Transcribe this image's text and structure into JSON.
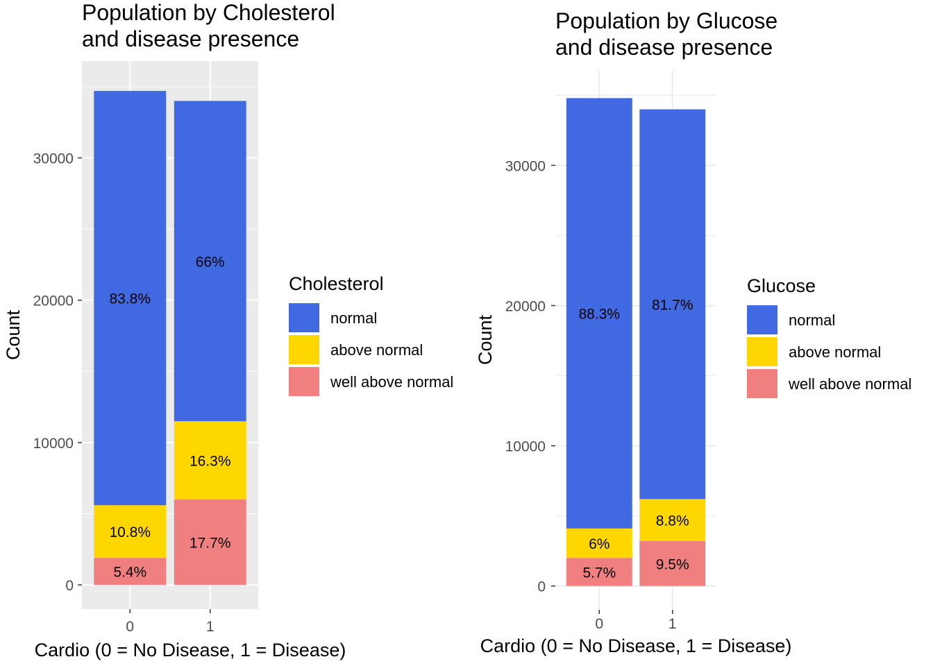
{
  "chart_data": [
    {
      "type": "bar",
      "stacked": true,
      "title_lines": [
        "Population by Cholesterol",
        "and disease presence"
      ],
      "xlabel": "Cardio (0 = No Disease, 1 = Disease)",
      "ylabel": "Count",
      "categories": [
        "0",
        "1"
      ],
      "y_ticks": [
        0,
        10000,
        20000,
        30000
      ],
      "y_tick_labels": [
        "0",
        "10000",
        "20000",
        "30000"
      ],
      "ylim": [
        -1700,
        36800
      ],
      "grid": true,
      "panel_background": "#ebebeb",
      "grid_color": "#ffffff",
      "legend": {
        "title": "Cholesterol",
        "position": "right"
      },
      "series": [
        {
          "name": "well above normal",
          "color": "#f08080",
          "values": [
            1900,
            6000
          ],
          "labels": [
            "5.4%",
            "17.7%"
          ]
        },
        {
          "name": "above normal",
          "color": "#ffd700",
          "values": [
            3700,
            5500
          ],
          "labels": [
            "10.8%",
            "16.3%"
          ]
        },
        {
          "name": "normal",
          "color": "#4169e1",
          "values": [
            29100,
            22500
          ],
          "labels": [
            "83.8%",
            "66%"
          ]
        }
      ]
    },
    {
      "type": "bar",
      "stacked": true,
      "title_lines": [
        "Population by Glucose",
        "and disease presence"
      ],
      "xlabel": "Cardio (0 = No Disease, 1 = Disease)",
      "ylabel": "Count",
      "categories": [
        "0",
        "1"
      ],
      "y_ticks": [
        0,
        10000,
        20000,
        30000
      ],
      "y_tick_labels": [
        "0",
        "10000",
        "20000",
        "30000"
      ],
      "ylim": [
        -1700,
        36800
      ],
      "grid": true,
      "panel_background": "#ffffff",
      "grid_color": "#ebebeb",
      "legend": {
        "title": "Glucose",
        "position": "right"
      },
      "series": [
        {
          "name": "well above normal",
          "color": "#f08080",
          "values": [
            2000,
            3200
          ],
          "labels": [
            "5.7%",
            "9.5%"
          ]
        },
        {
          "name": "above normal",
          "color": "#ffd700",
          "values": [
            2100,
            3000
          ],
          "labels": [
            "6%",
            "8.8%"
          ]
        },
        {
          "name": "normal",
          "color": "#4169e1",
          "values": [
            30700,
            27800
          ],
          "labels": [
            "88.3%",
            "81.7%"
          ]
        }
      ]
    }
  ]
}
